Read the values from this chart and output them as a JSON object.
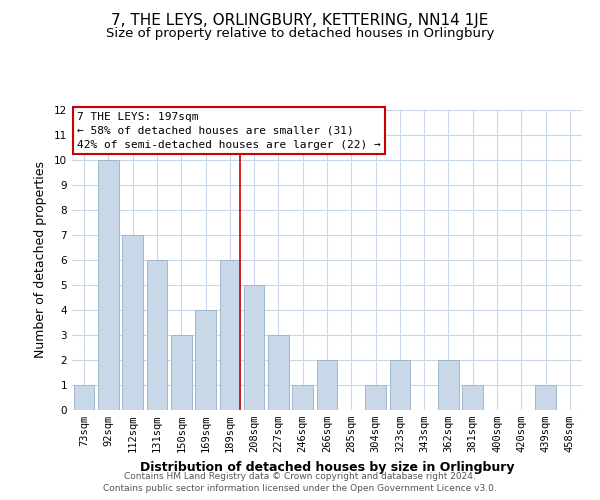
{
  "title": "7, THE LEYS, ORLINGBURY, KETTERING, NN14 1JE",
  "subtitle": "Size of property relative to detached houses in Orlingbury",
  "xlabel": "Distribution of detached houses by size in Orlingbury",
  "ylabel": "Number of detached properties",
  "bar_labels": [
    "73sqm",
    "92sqm",
    "112sqm",
    "131sqm",
    "150sqm",
    "169sqm",
    "189sqm",
    "208sqm",
    "227sqm",
    "246sqm",
    "266sqm",
    "285sqm",
    "304sqm",
    "323sqm",
    "343sqm",
    "362sqm",
    "381sqm",
    "400sqm",
    "420sqm",
    "439sqm",
    "458sqm"
  ],
  "bar_values": [
    1,
    10,
    7,
    6,
    3,
    4,
    6,
    5,
    3,
    1,
    2,
    0,
    1,
    2,
    0,
    2,
    1,
    0,
    0,
    1,
    0
  ],
  "bar_color": "#c8d8e8",
  "bar_edge_color": "#a0b8cc",
  "ylim": [
    0,
    12
  ],
  "yticks": [
    0,
    1,
    2,
    3,
    4,
    5,
    6,
    7,
    8,
    9,
    10,
    11,
    12
  ],
  "property_line_color": "#cc0000",
  "annotation_title": "7 THE LEYS: 197sqm",
  "annotation_line1": "← 58% of detached houses are smaller (31)",
  "annotation_line2": "42% of semi-detached houses are larger (22) →",
  "annotation_box_color": "#ffffff",
  "annotation_box_edge": "#cc0000",
  "footer_line1": "Contains HM Land Registry data © Crown copyright and database right 2024.",
  "footer_line2": "Contains public sector information licensed under the Open Government Licence v3.0.",
  "bg_color": "#ffffff",
  "grid_color": "#c8d8e8",
  "title_fontsize": 11,
  "subtitle_fontsize": 9.5,
  "axis_label_fontsize": 9,
  "tick_fontsize": 7.5,
  "footer_fontsize": 6.5,
  "annotation_fontsize": 8
}
